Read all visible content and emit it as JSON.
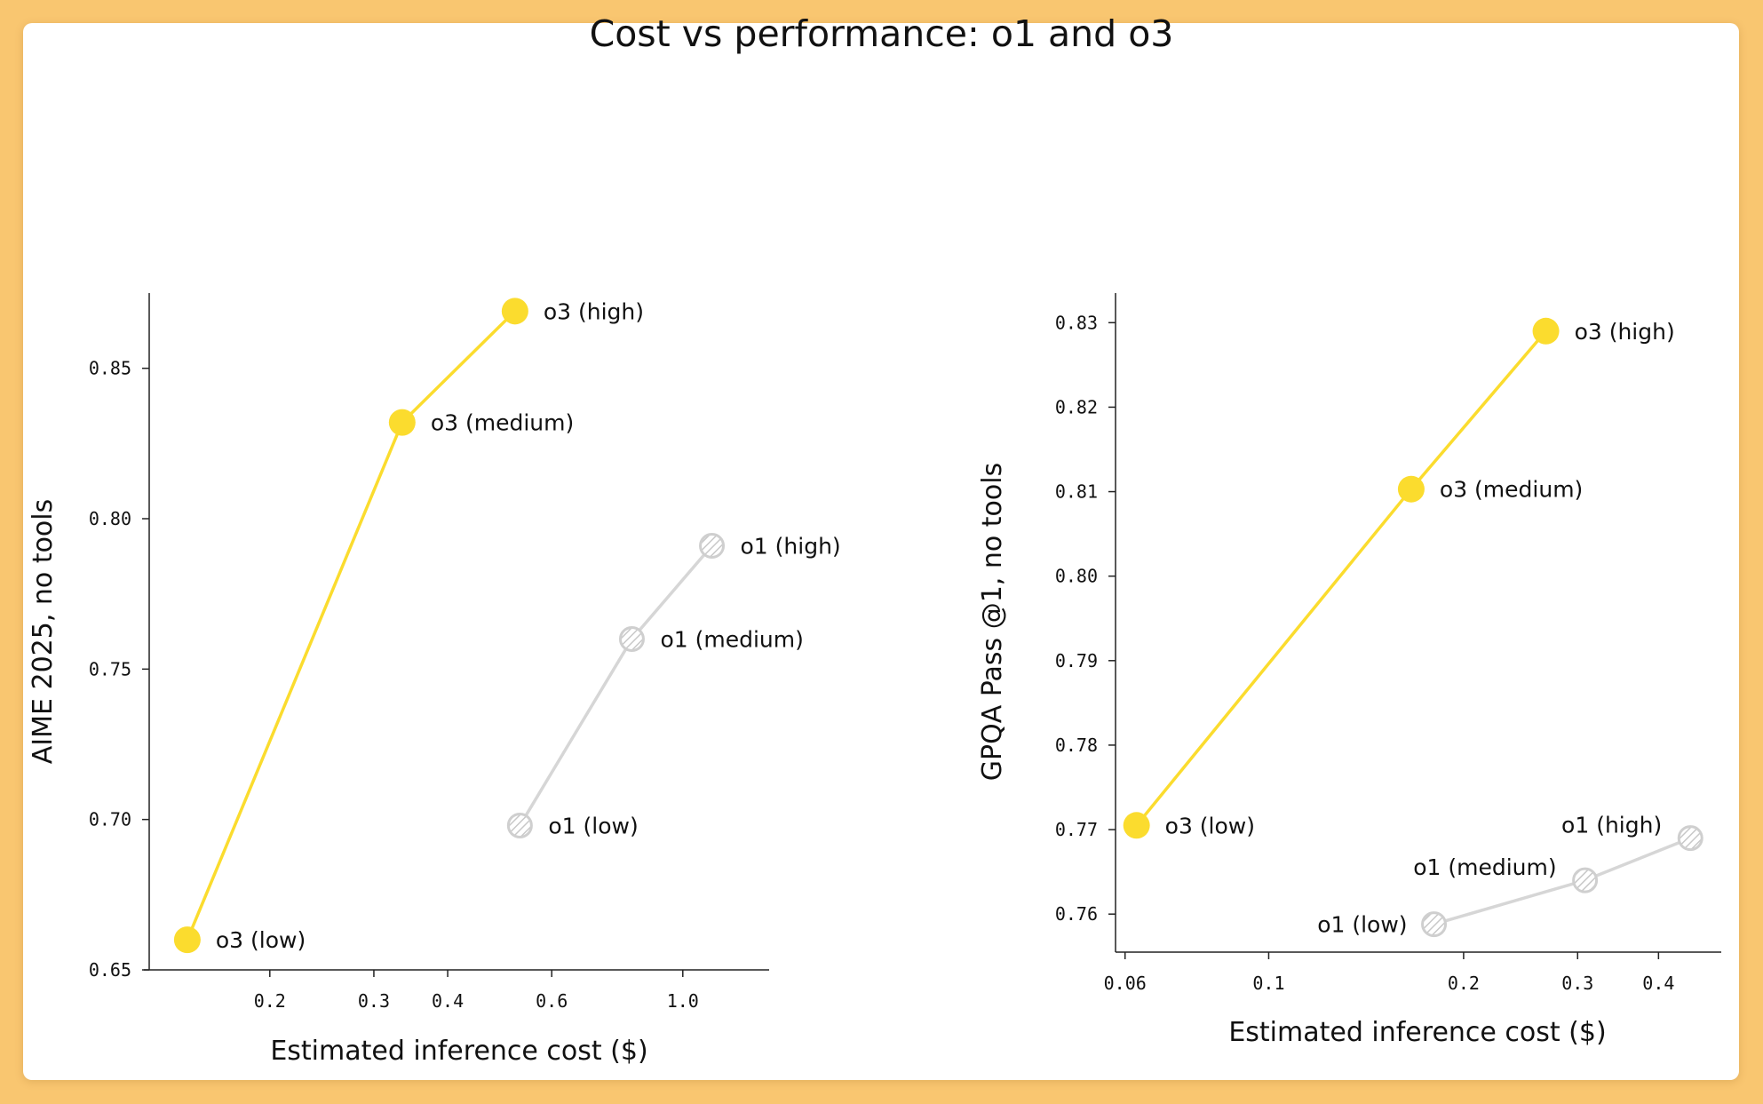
{
  "page": {
    "title": "Cost vs performance: o1 and o3"
  },
  "colors": {
    "background": "#f9c670",
    "o3": "#fbdc2e",
    "o1": "#d6d6d6"
  },
  "chart_data": [
    {
      "type": "line",
      "xlabel": "Estimated inference cost ($)",
      "ylabel": "AIME 2025, no tools",
      "xscale": "log",
      "xlim": [
        0.125,
        1.4
      ],
      "ylim": [
        0.65,
        0.875
      ],
      "xticks": [
        0.2,
        0.3,
        0.4,
        0.6,
        1.0
      ],
      "xtick_labels": [
        "0.2",
        "0.3",
        "0.4",
        "0.6",
        "1.0"
      ],
      "yticks": [
        0.65,
        0.7,
        0.75,
        0.8,
        0.85
      ],
      "ytick_labels": [
        "0.65",
        "0.70",
        "0.75",
        "0.80",
        "0.85"
      ],
      "grid": false,
      "series": [
        {
          "name": "o3",
          "style": "solid",
          "points": [
            {
              "label": "o3 (low)",
              "x": 0.145,
              "y": 0.66,
              "label_pos": "right"
            },
            {
              "label": "o3 (medium)",
              "x": 0.335,
              "y": 0.832,
              "label_pos": "right"
            },
            {
              "label": "o3 (high)",
              "x": 0.52,
              "y": 0.869,
              "label_pos": "right"
            }
          ]
        },
        {
          "name": "o1",
          "style": "hatched",
          "points": [
            {
              "label": "o1 (low)",
              "x": 0.53,
              "y": 0.698,
              "label_pos": "right"
            },
            {
              "label": "o1 (medium)",
              "x": 0.82,
              "y": 0.76,
              "label_pos": "right"
            },
            {
              "label": "o1 (high)",
              "x": 1.12,
              "y": 0.791,
              "label_pos": "right"
            }
          ]
        }
      ]
    },
    {
      "type": "line",
      "xlabel": "Estimated inference cost ($)",
      "ylabel": "GPQA Pass @1, no tools",
      "xscale": "log",
      "xlim": [
        0.058,
        0.5
      ],
      "ylim": [
        0.7555,
        0.8335
      ],
      "xticks": [
        0.06,
        0.1,
        0.2,
        0.3,
        0.4
      ],
      "xtick_labels": [
        "0.06",
        "0.1",
        "0.2",
        "0.3",
        "0.4"
      ],
      "yticks": [
        0.76,
        0.77,
        0.78,
        0.79,
        0.8,
        0.81,
        0.82,
        0.83
      ],
      "ytick_labels": [
        "0.76",
        "0.77",
        "0.78",
        "0.79",
        "0.80",
        "0.81",
        "0.82",
        "0.83"
      ],
      "grid": false,
      "series": [
        {
          "name": "o3",
          "style": "solid",
          "points": [
            {
              "label": "o3 (low)",
              "x": 0.0625,
              "y": 0.7705,
              "label_pos": "right"
            },
            {
              "label": "o3 (medium)",
              "x": 0.166,
              "y": 0.8103,
              "label_pos": "right"
            },
            {
              "label": "o3 (high)",
              "x": 0.268,
              "y": 0.829,
              "label_pos": "right"
            }
          ]
        },
        {
          "name": "o1",
          "style": "hatched",
          "points": [
            {
              "label": "o1 (low)",
              "x": 0.18,
              "y": 0.7588,
              "label_pos": "left"
            },
            {
              "label": "o1 (medium)",
              "x": 0.308,
              "y": 0.764,
              "label_pos": "above-left"
            },
            {
              "label": "o1 (high)",
              "x": 0.448,
              "y": 0.769,
              "label_pos": "above-left"
            }
          ]
        }
      ]
    }
  ]
}
